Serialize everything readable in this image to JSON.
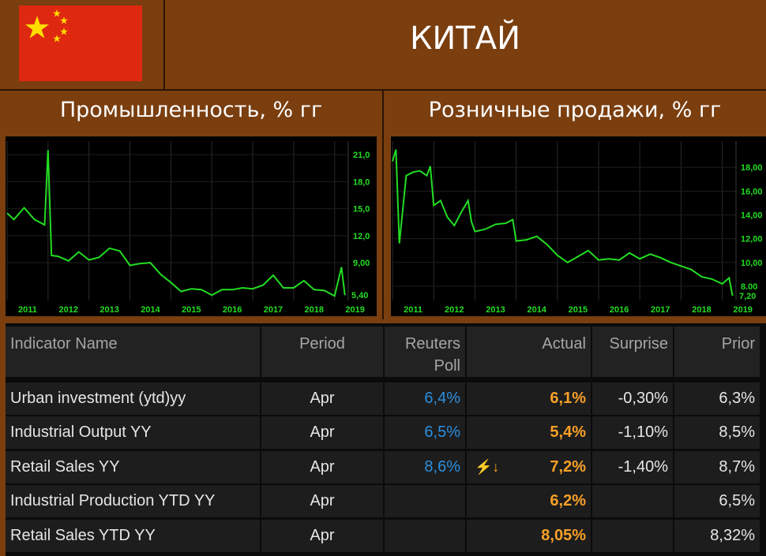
{
  "header": {
    "country": "КИТАЙ"
  },
  "charts": [
    {
      "title": "Промышленность, % гг",
      "chart_data": {
        "type": "line",
        "x": [
          "2011-01",
          "2011-03",
          "2011-06",
          "2011-09",
          "2011-12",
          "2012-01",
          "2012-02",
          "2012-04",
          "2012-07",
          "2012-10",
          "2013-01",
          "2013-04",
          "2013-07",
          "2013-10",
          "2014-01",
          "2014-04",
          "2014-07",
          "2014-10",
          "2015-01",
          "2015-04",
          "2015-07",
          "2015-10",
          "2016-01",
          "2016-04",
          "2016-07",
          "2016-10",
          "2017-01",
          "2017-04",
          "2017-07",
          "2017-10",
          "2018-01",
          "2018-04",
          "2018-07",
          "2018-10",
          "2019-01",
          "2019-03",
          "2019-04"
        ],
        "y": [
          14.5,
          13.8,
          15.1,
          13.8,
          13.2,
          21.5,
          9.8,
          9.7,
          9.2,
          10.2,
          9.3,
          9.6,
          10.6,
          10.3,
          8.7,
          8.9,
          9.0,
          7.7,
          6.8,
          5.8,
          6.1,
          6.0,
          5.4,
          6.0,
          6.0,
          6.2,
          6.1,
          6.5,
          7.6,
          6.2,
          6.2,
          7.0,
          6.0,
          5.9,
          5.3,
          8.5,
          5.4
        ],
        "x_ticks": [
          "2011",
          "2012",
          "2013",
          "2014",
          "2015",
          "2016",
          "2017",
          "2018",
          "2019"
        ],
        "y_ticks": [
          "21,0",
          "18,0",
          "15,0",
          "12,0",
          "9,00"
        ],
        "last_label": "5,40",
        "ylim": [
          4.8,
          22.5
        ],
        "color": "#22dd22"
      }
    },
    {
      "title": "Розничные продажи, % гг",
      "chart_data": {
        "type": "line",
        "x": [
          "2011-01",
          "2011-02",
          "2011-03",
          "2011-05",
          "2011-07",
          "2011-09",
          "2011-11",
          "2011-12",
          "2012-01",
          "2012-03",
          "2012-05",
          "2012-07",
          "2012-09",
          "2012-11",
          "2012-12",
          "2013-01",
          "2013-04",
          "2013-07",
          "2013-10",
          "2013-12",
          "2014-01",
          "2014-04",
          "2014-07",
          "2014-10",
          "2015-01",
          "2015-04",
          "2015-07",
          "2015-10",
          "2016-01",
          "2016-04",
          "2016-07",
          "2016-10",
          "2017-01",
          "2017-04",
          "2017-07",
          "2017-10",
          "2018-01",
          "2018-04",
          "2018-07",
          "2018-10",
          "2019-01",
          "2019-03",
          "2019-04"
        ],
        "y": [
          18.5,
          19.5,
          11.6,
          17.3,
          17.6,
          17.7,
          17.3,
          18.1,
          14.8,
          15.2,
          13.8,
          13.1,
          14.2,
          15.2,
          13.4,
          12.6,
          12.8,
          13.2,
          13.3,
          13.6,
          11.8,
          11.9,
          12.2,
          11.5,
          10.6,
          10.0,
          10.5,
          11.0,
          10.2,
          10.3,
          10.2,
          10.8,
          10.3,
          10.7,
          10.4,
          10.0,
          9.7,
          9.4,
          8.8,
          8.6,
          8.2,
          8.7,
          7.2
        ],
        "x_ticks": [
          "2011",
          "2012",
          "2013",
          "2014",
          "2015",
          "2016",
          "2017",
          "2018",
          "2019"
        ],
        "y_ticks": [
          "18,00",
          "16,00",
          "14,00",
          "12,00",
          "10,00",
          "8,00"
        ],
        "last_label": "7,20",
        "ylim": [
          6.8,
          20.2
        ],
        "color": "#22dd22"
      }
    }
  ],
  "table": {
    "headers": {
      "name": "Indicator Name",
      "period": "Period",
      "poll": "Reuters\nPoll",
      "actual": "Actual",
      "surprise": "Surprise",
      "prior": "Prior"
    },
    "rows": [
      {
        "name": "Urban investment (ytd)yy",
        "period": "Apr",
        "poll": "6,4%",
        "flag": "",
        "actual": "6,1%",
        "surprise": "-0,30%",
        "prior": "6,3%"
      },
      {
        "name": "Industrial Output YY",
        "period": "Apr",
        "poll": "6,5%",
        "flag": "",
        "actual": "5,4%",
        "surprise": "-1,10%",
        "prior": "8,5%"
      },
      {
        "name": "Retail Sales YY",
        "period": "Apr",
        "poll": "8,6%",
        "flag": "⚡↓",
        "actual": "7,2%",
        "surprise": "-1,40%",
        "prior": "8,7%"
      },
      {
        "name": "Industrial Production YTD YY",
        "period": "Apr",
        "poll": "",
        "flag": "",
        "actual": "6,2%",
        "surprise": "",
        "prior": "6,5%"
      },
      {
        "name": "Retail Sales YTD YY",
        "period": "Apr",
        "poll": "",
        "flag": "",
        "actual": "8,05%",
        "surprise": "",
        "prior": "8,32%"
      }
    ]
  },
  "colors": {
    "background": "#7a3e0f",
    "accent_blue": "#2a8fe0",
    "accent_orange": "#f7a028",
    "flag_red": "#de2910",
    "flag_yellow": "#ffde00",
    "line_green": "#22dd22"
  }
}
